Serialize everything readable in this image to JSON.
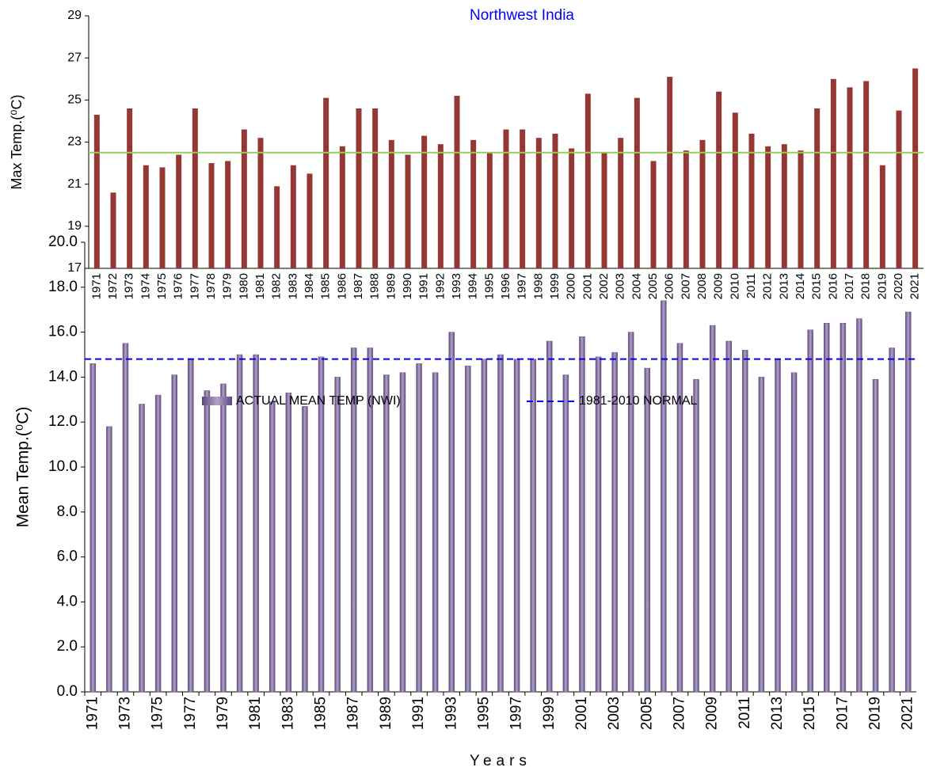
{
  "chart_data": [
    {
      "type": "bar",
      "title": "Northwest India",
      "title_color": "#0000ff",
      "y_label": "Max Temp.(⁰C)",
      "categories": [
        "1971",
        "1972",
        "1973",
        "1974",
        "1975",
        "1976",
        "1977",
        "1978",
        "1979",
        "1980",
        "1981",
        "1982",
        "1983",
        "1984",
        "1985",
        "1986",
        "1987",
        "1988",
        "1989",
        "1990",
        "1991",
        "1992",
        "1993",
        "1994",
        "1995",
        "1996",
        "1997",
        "1998",
        "1999",
        "2000",
        "2001",
        "2002",
        "2003",
        "2004",
        "2005",
        "2006",
        "2007",
        "2008",
        "2009",
        "2010",
        "2011",
        "2012",
        "2013",
        "2014",
        "2015",
        "2016",
        "2017",
        "2018",
        "2019",
        "2020",
        "2021"
      ],
      "series": [
        {
          "color": "#953735",
          "values": [
            24.3,
            20.6,
            24.6,
            21.9,
            21.8,
            22.4,
            24.6,
            22.0,
            22.1,
            23.6,
            23.2,
            20.9,
            21.9,
            21.5,
            25.1,
            22.8,
            24.6,
            24.6,
            23.1,
            22.4,
            23.3,
            22.9,
            25.2,
            23.1,
            22.5,
            23.6,
            23.6,
            23.2,
            23.4,
            22.7,
            25.3,
            22.5,
            23.2,
            25.1,
            22.1,
            26.1,
            22.6,
            23.1,
            25.4,
            24.4,
            23.4,
            22.8,
            22.9,
            22.6,
            24.6,
            26.0,
            25.6,
            25.9,
            21.9,
            24.5,
            26.5
          ]
        }
      ],
      "reference": {
        "value": 22.5,
        "color": "#92d050",
        "style": "solid"
      },
      "ylim": [
        17,
        29
      ],
      "yticks": [
        17,
        19,
        21,
        23,
        25,
        27,
        29
      ]
    },
    {
      "type": "bar",
      "y_label": "Mean Temp.(⁰C)",
      "x_label": "Years",
      "categories": [
        "1971",
        null,
        "1973",
        null,
        "1975",
        null,
        "1977",
        null,
        "1979",
        null,
        "1981",
        null,
        "1983",
        null,
        "1985",
        null,
        "1987",
        null,
        "1989",
        null,
        "1991",
        null,
        "1993",
        null,
        "1995",
        null,
        "1997",
        null,
        "1999",
        null,
        "2001",
        null,
        "2003",
        null,
        "2005",
        null,
        "2007",
        null,
        "2009",
        null,
        "2011",
        null,
        "2013",
        null,
        "2015",
        null,
        "2017",
        null,
        "2019",
        null,
        "2021"
      ],
      "series": [
        {
          "name": "ACTUAL MEAN TEMP (NWI)",
          "color": "#8064a2",
          "values": [
            14.6,
            11.8,
            15.5,
            12.8,
            13.2,
            14.1,
            14.8,
            13.4,
            13.7,
            15.0,
            15.0,
            12.9,
            13.3,
            12.7,
            14.9,
            14.0,
            15.3,
            15.3,
            14.1,
            14.2,
            14.6,
            14.2,
            16.0,
            14.5,
            14.8,
            15.0,
            14.8,
            14.8,
            15.6,
            14.1,
            15.8,
            14.9,
            15.1,
            16.0,
            14.4,
            17.4,
            15.5,
            13.9,
            16.3,
            15.6,
            15.2,
            14.0,
            14.8,
            14.2,
            16.1,
            16.4,
            16.4,
            16.6,
            13.9,
            15.3,
            16.9
          ]
        }
      ],
      "reference": {
        "name": "1981-2010 NORMAL",
        "value": 14.8,
        "color": "#0000ff",
        "style": "dashed"
      },
      "ylim": [
        0,
        20
      ],
      "yticks": [
        {
          "value": 0,
          "label": "0.0"
        },
        {
          "value": 2,
          "label": "2.0"
        },
        {
          "value": 4,
          "label": "4.0"
        },
        {
          "value": 6,
          "label": "6.0"
        },
        {
          "value": 8,
          "label": "8.0"
        },
        {
          "value": 10,
          "label": "10.0"
        },
        {
          "value": 12,
          "label": "12.0"
        },
        {
          "value": 14,
          "label": "14.0"
        },
        {
          "value": 16,
          "label": "16.0"
        },
        {
          "value": 18,
          "label": "18.0"
        },
        {
          "value": 20,
          "label": "20.0"
        }
      ]
    }
  ]
}
